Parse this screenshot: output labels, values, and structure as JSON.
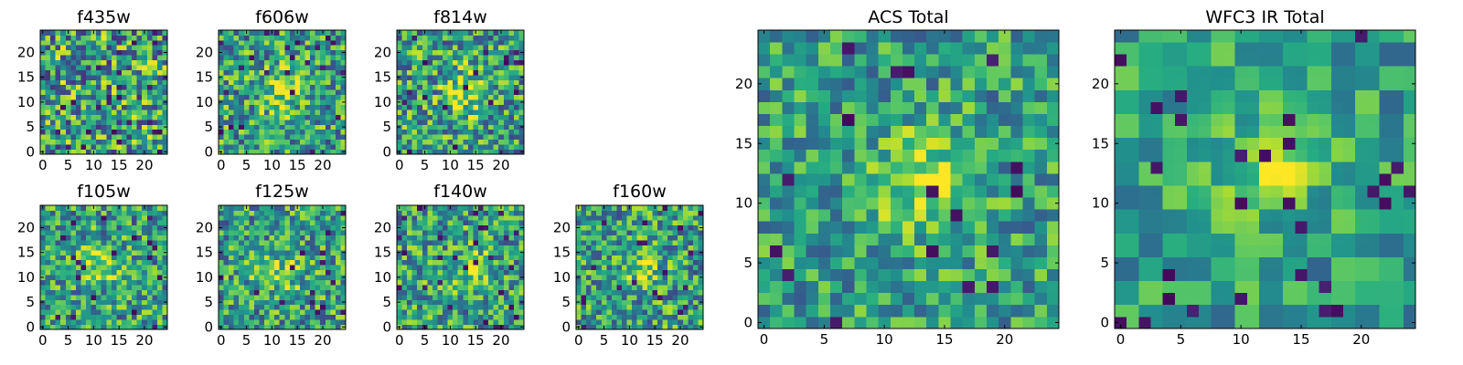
{
  "chart_data": [
    {
      "type": "heatmap",
      "title": "f435w",
      "nx": 25,
      "ny": 25,
      "xticks": [
        0,
        5,
        10,
        15,
        20
      ],
      "yticks": [
        0,
        5,
        10,
        15,
        20
      ],
      "colormap": "viridis",
      "peak": null,
      "blob_strength": 0.0,
      "noise": 0.42,
      "pixel": 1
    },
    {
      "type": "heatmap",
      "title": "f606w",
      "nx": 25,
      "ny": 25,
      "xticks": [
        0,
        5,
        10,
        15,
        20
      ],
      "yticks": [
        0,
        5,
        10,
        15,
        20
      ],
      "colormap": "viridis",
      "peak": [
        12,
        12
      ],
      "blob_strength": 0.32,
      "noise": 0.36,
      "pixel": 1
    },
    {
      "type": "heatmap",
      "title": "f814w",
      "nx": 25,
      "ny": 25,
      "xticks": [
        0,
        5,
        10,
        15,
        20
      ],
      "yticks": [
        0,
        5,
        10,
        15,
        20
      ],
      "colormap": "viridis",
      "peak": [
        13,
        12
      ],
      "blob_strength": 0.35,
      "noise": 0.36,
      "pixel": 1
    },
    {
      "type": "heatmap",
      "title": "f105w",
      "nx": 25,
      "ny": 25,
      "xticks": [
        0,
        5,
        10,
        15,
        20
      ],
      "yticks": [
        0,
        5,
        10,
        15,
        20
      ],
      "colormap": "viridis",
      "peak": [
        11,
        12
      ],
      "blob_strength": 0.28,
      "noise": 0.34,
      "pixel": 1
    },
    {
      "type": "heatmap",
      "title": "f125w",
      "nx": 25,
      "ny": 25,
      "xticks": [
        0,
        5,
        10,
        15,
        20
      ],
      "yticks": [
        0,
        5,
        10,
        15,
        20
      ],
      "colormap": "viridis",
      "peak": [
        11,
        11
      ],
      "blob_strength": 0.26,
      "noise": 0.34,
      "pixel": 1
    },
    {
      "type": "heatmap",
      "title": "f140w",
      "nx": 25,
      "ny": 25,
      "xticks": [
        0,
        5,
        10,
        15,
        20
      ],
      "yticks": [
        0,
        5,
        10,
        15,
        20
      ],
      "colormap": "viridis",
      "peak": [
        14,
        12
      ],
      "blob_strength": 0.28,
      "noise": 0.34,
      "pixel": 1
    },
    {
      "type": "heatmap",
      "title": "f160w",
      "nx": 25,
      "ny": 25,
      "xticks": [
        0,
        5,
        10,
        15,
        20
      ],
      "yticks": [
        0,
        5,
        10,
        15,
        20
      ],
      "colormap": "viridis",
      "peak": [
        12,
        12
      ],
      "blob_strength": 0.26,
      "noise": 0.34,
      "pixel": 1
    },
    {
      "type": "heatmap",
      "title": "ACS Total",
      "nx": 25,
      "ny": 25,
      "xticks": [
        0,
        5,
        10,
        15,
        20
      ],
      "yticks": [
        0,
        5,
        10,
        15,
        20
      ],
      "colormap": "viridis",
      "peak": [
        13,
        12
      ],
      "blob_strength": 0.35,
      "noise": 0.28,
      "pixel": 1
    },
    {
      "type": "heatmap",
      "title": "WFC3 IR Total",
      "nx": 25,
      "ny": 25,
      "xticks": [
        0,
        5,
        10,
        15,
        20
      ],
      "yticks": [
        0,
        5,
        10,
        15,
        20
      ],
      "colormap": "viridis",
      "peak": [
        12,
        13
      ],
      "blob_strength": 0.3,
      "noise": 0.24,
      "pixel": 2
    }
  ]
}
